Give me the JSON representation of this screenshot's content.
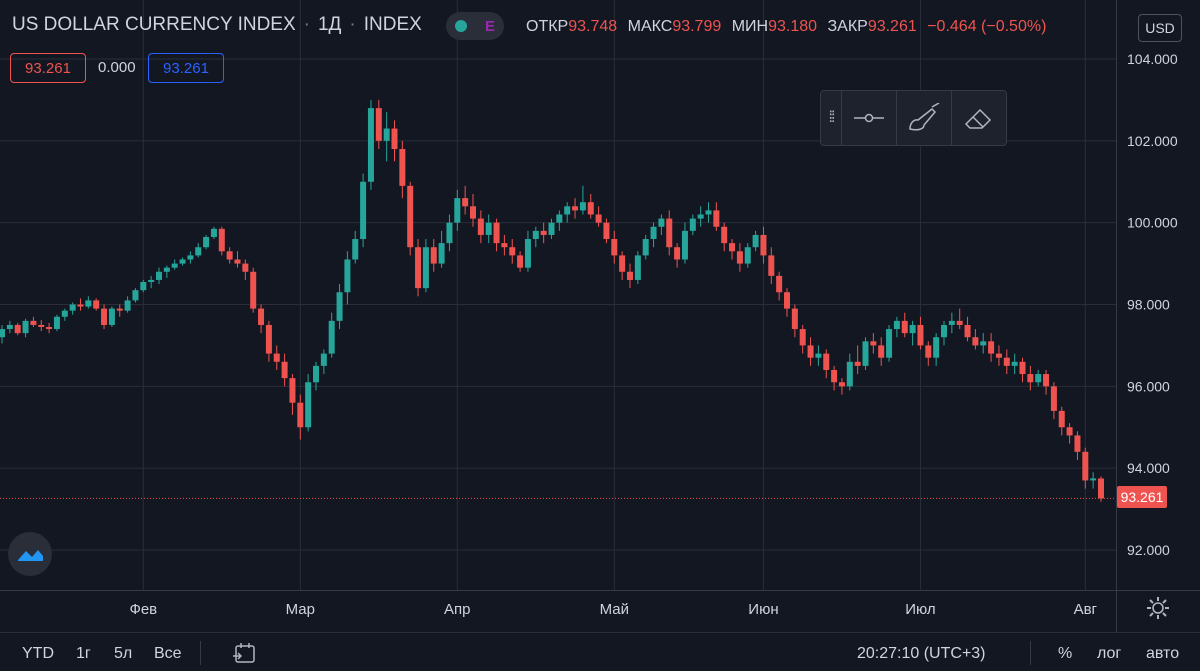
{
  "header": {
    "symbol": "US DOLLAR CURRENCY INDEX",
    "interval": "1Д",
    "exchange": "INDEX",
    "market_badge": "E",
    "ohlc": {
      "open_label": "ОТКР",
      "open": "93.748",
      "high_label": "МАКС",
      "high": "93.799",
      "low_label": "МИН",
      "low": "93.180",
      "close_label": "ЗАКР",
      "close": "93.261",
      "change": "−0.464 (−0.50%)"
    },
    "currency": "USD",
    "values": {
      "price": "93.261",
      "middle": "0.000",
      "price_blue": "93.261"
    }
  },
  "colors": {
    "up": "#26a69a",
    "down": "#ef5350",
    "background": "#131722",
    "grid": "#2a2e39"
  },
  "bottom_bar": {
    "ranges": [
      "YTD",
      "1г",
      "5л",
      "Все"
    ],
    "time": "20:27:10 (UTC+3)",
    "percent": "%",
    "log": "лог",
    "auto": "авто"
  },
  "chart_data": {
    "type": "candlestick",
    "title": "US DOLLAR CURRENCY INDEX",
    "xlabel": "",
    "ylabel": "",
    "ylim": [
      91.0,
      104.5
    ],
    "y_ticks": [
      "104.000",
      "102.000",
      "100.000",
      "98.000",
      "96.000",
      "94.000",
      "92.000"
    ],
    "x_ticks": [
      "Фев",
      "Мар",
      "Апр",
      "Май",
      "Июн",
      "Июл",
      "Авг"
    ],
    "x_tick_index": [
      18,
      38,
      58,
      78,
      97,
      117,
      138
    ],
    "last_price": 93.261,
    "last_price_label": "93.261",
    "candles": [
      [
        97.2,
        97.5,
        97.05,
        97.4
      ],
      [
        97.4,
        97.6,
        97.3,
        97.5
      ],
      [
        97.5,
        97.55,
        97.25,
        97.3
      ],
      [
        97.3,
        97.65,
        97.2,
        97.6
      ],
      [
        97.6,
        97.7,
        97.45,
        97.5
      ],
      [
        97.5,
        97.62,
        97.35,
        97.45
      ],
      [
        97.45,
        97.55,
        97.3,
        97.4
      ],
      [
        97.4,
        97.75,
        97.35,
        97.7
      ],
      [
        97.7,
        97.9,
        97.6,
        97.85
      ],
      [
        97.85,
        98.05,
        97.75,
        98.0
      ],
      [
        98.0,
        98.15,
        97.85,
        97.95
      ],
      [
        97.95,
        98.2,
        97.9,
        98.1
      ],
      [
        98.1,
        98.15,
        97.85,
        97.9
      ],
      [
        97.9,
        98.0,
        97.4,
        97.5
      ],
      [
        97.5,
        97.95,
        97.45,
        97.9
      ],
      [
        97.9,
        98.0,
        97.7,
        97.85
      ],
      [
        97.85,
        98.2,
        97.8,
        98.1
      ],
      [
        98.1,
        98.4,
        98.05,
        98.35
      ],
      [
        98.35,
        98.6,
        98.3,
        98.55
      ],
      [
        98.55,
        98.7,
        98.4,
        98.6
      ],
      [
        98.6,
        98.9,
        98.5,
        98.8
      ],
      [
        98.8,
        98.95,
        98.65,
        98.9
      ],
      [
        98.9,
        99.1,
        98.85,
        99.0
      ],
      [
        99.0,
        99.15,
        98.95,
        99.1
      ],
      [
        99.1,
        99.3,
        99.0,
        99.2
      ],
      [
        99.2,
        99.5,
        99.15,
        99.4
      ],
      [
        99.4,
        99.7,
        99.35,
        99.65
      ],
      [
        99.65,
        99.9,
        99.6,
        99.85
      ],
      [
        99.85,
        99.9,
        99.2,
        99.3
      ],
      [
        99.3,
        99.4,
        99.0,
        99.1
      ],
      [
        99.1,
        99.3,
        98.9,
        99.0
      ],
      [
        99.0,
        99.1,
        98.6,
        98.8
      ],
      [
        98.8,
        98.9,
        97.8,
        97.9
      ],
      [
        97.9,
        98.0,
        97.3,
        97.5
      ],
      [
        97.5,
        97.6,
        96.6,
        96.8
      ],
      [
        96.8,
        97.0,
        96.4,
        96.6
      ],
      [
        96.6,
        96.8,
        96.0,
        96.2
      ],
      [
        96.2,
        96.3,
        95.3,
        95.6
      ],
      [
        95.6,
        95.8,
        94.7,
        95.0
      ],
      [
        95.0,
        96.3,
        94.9,
        96.1
      ],
      [
        96.1,
        96.6,
        95.9,
        96.5
      ],
      [
        96.5,
        96.9,
        96.3,
        96.8
      ],
      [
        96.8,
        97.8,
        96.7,
        97.6
      ],
      [
        97.6,
        98.5,
        97.4,
        98.3
      ],
      [
        98.3,
        99.3,
        98.0,
        99.1
      ],
      [
        99.1,
        99.8,
        99.0,
        99.6
      ],
      [
        99.6,
        101.2,
        99.4,
        101.0
      ],
      [
        101.0,
        103.0,
        100.8,
        102.8
      ],
      [
        102.8,
        103.0,
        101.8,
        102.0
      ],
      [
        102.0,
        102.7,
        101.5,
        102.3
      ],
      [
        102.3,
        102.5,
        101.5,
        101.8
      ],
      [
        101.8,
        102.0,
        100.6,
        100.9
      ],
      [
        100.9,
        101.0,
        99.2,
        99.4
      ],
      [
        99.4,
        99.6,
        98.2,
        98.4
      ],
      [
        98.4,
        99.6,
        98.3,
        99.4
      ],
      [
        99.4,
        99.6,
        98.8,
        99.0
      ],
      [
        99.0,
        99.8,
        98.9,
        99.5
      ],
      [
        99.5,
        100.2,
        99.3,
        100.0
      ],
      [
        100.0,
        100.8,
        99.8,
        100.6
      ],
      [
        100.6,
        100.9,
        100.2,
        100.4
      ],
      [
        100.4,
        100.7,
        99.9,
        100.1
      ],
      [
        100.1,
        100.3,
        99.5,
        99.7
      ],
      [
        99.7,
        100.2,
        99.5,
        100.0
      ],
      [
        100.0,
        100.1,
        99.3,
        99.5
      ],
      [
        99.5,
        99.7,
        99.2,
        99.4
      ],
      [
        99.4,
        99.6,
        99.0,
        99.2
      ],
      [
        99.2,
        99.3,
        98.8,
        98.9
      ],
      [
        98.9,
        99.8,
        98.8,
        99.6
      ],
      [
        99.6,
        99.9,
        99.4,
        99.8
      ],
      [
        99.8,
        100.0,
        99.5,
        99.7
      ],
      [
        99.7,
        100.1,
        99.6,
        100.0
      ],
      [
        100.0,
        100.3,
        99.8,
        100.2
      ],
      [
        100.2,
        100.5,
        100.0,
        100.4
      ],
      [
        100.4,
        100.6,
        100.1,
        100.3
      ],
      [
        100.3,
        100.9,
        100.2,
        100.5
      ],
      [
        100.5,
        100.7,
        100.1,
        100.2
      ],
      [
        100.2,
        100.4,
        99.9,
        100.0
      ],
      [
        100.0,
        100.1,
        99.5,
        99.6
      ],
      [
        99.6,
        99.8,
        99.0,
        99.2
      ],
      [
        99.2,
        99.3,
        98.6,
        98.8
      ],
      [
        98.8,
        99.0,
        98.4,
        98.6
      ],
      [
        98.6,
        99.3,
        98.5,
        99.2
      ],
      [
        99.2,
        99.7,
        99.1,
        99.6
      ],
      [
        99.6,
        100.0,
        99.4,
        99.9
      ],
      [
        99.9,
        100.2,
        99.7,
        100.1
      ],
      [
        100.1,
        100.3,
        99.2,
        99.4
      ],
      [
        99.4,
        99.5,
        98.9,
        99.1
      ],
      [
        99.1,
        100.0,
        99.0,
        99.8
      ],
      [
        99.8,
        100.2,
        99.7,
        100.1
      ],
      [
        100.1,
        100.4,
        99.9,
        100.2
      ],
      [
        100.2,
        100.5,
        100.0,
        100.3
      ],
      [
        100.3,
        100.5,
        99.8,
        99.9
      ],
      [
        99.9,
        100.0,
        99.3,
        99.5
      ],
      [
        99.5,
        99.6,
        99.1,
        99.3
      ],
      [
        99.3,
        99.5,
        98.8,
        99.0
      ],
      [
        99.0,
        99.5,
        98.9,
        99.4
      ],
      [
        99.4,
        99.8,
        99.3,
        99.7
      ],
      [
        99.7,
        99.9,
        99.0,
        99.2
      ],
      [
        99.2,
        99.4,
        98.5,
        98.7
      ],
      [
        98.7,
        98.8,
        98.1,
        98.3
      ],
      [
        98.3,
        98.4,
        97.7,
        97.9
      ],
      [
        97.9,
        98.0,
        97.2,
        97.4
      ],
      [
        97.4,
        97.5,
        96.8,
        97.0
      ],
      [
        97.0,
        97.2,
        96.5,
        96.7
      ],
      [
        96.7,
        97.0,
        96.5,
        96.8
      ],
      [
        96.8,
        96.9,
        96.2,
        96.4
      ],
      [
        96.4,
        96.5,
        95.9,
        96.1
      ],
      [
        96.1,
        96.2,
        95.8,
        96.0
      ],
      [
        96.0,
        96.8,
        95.9,
        96.6
      ],
      [
        96.6,
        97.0,
        96.3,
        96.5
      ],
      [
        96.5,
        97.2,
        96.4,
        97.1
      ],
      [
        97.1,
        97.3,
        96.8,
        97.0
      ],
      [
        97.0,
        97.2,
        96.5,
        96.7
      ],
      [
        96.7,
        97.5,
        96.6,
        97.4
      ],
      [
        97.4,
        97.7,
        97.2,
        97.6
      ],
      [
        97.6,
        97.8,
        97.2,
        97.3
      ],
      [
        97.3,
        97.6,
        97.0,
        97.5
      ],
      [
        97.5,
        97.7,
        96.9,
        97.0
      ],
      [
        97.0,
        97.1,
        96.5,
        96.7
      ],
      [
        96.7,
        97.3,
        96.5,
        97.2
      ],
      [
        97.2,
        97.6,
        97.0,
        97.5
      ],
      [
        97.5,
        97.8,
        97.3,
        97.6
      ],
      [
        97.6,
        97.9,
        97.4,
        97.5
      ],
      [
        97.5,
        97.7,
        97.1,
        97.2
      ],
      [
        97.2,
        97.4,
        96.9,
        97.0
      ],
      [
        97.0,
        97.3,
        96.8,
        97.1
      ],
      [
        97.1,
        97.3,
        96.6,
        96.8
      ],
      [
        96.8,
        97.0,
        96.5,
        96.7
      ],
      [
        96.7,
        96.9,
        96.3,
        96.5
      ],
      [
        96.5,
        96.8,
        96.3,
        96.6
      ],
      [
        96.6,
        96.7,
        96.1,
        96.3
      ],
      [
        96.3,
        96.5,
        95.9,
        96.1
      ],
      [
        96.1,
        96.4,
        96.0,
        96.3
      ],
      [
        96.3,
        96.4,
        95.8,
        96.0
      ],
      [
        96.0,
        96.1,
        95.2,
        95.4
      ],
      [
        95.4,
        95.5,
        94.8,
        95.0
      ],
      [
        95.0,
        95.1,
        94.6,
        94.8
      ],
      [
        94.8,
        94.9,
        94.2,
        94.4
      ],
      [
        94.4,
        94.5,
        93.5,
        93.7
      ],
      [
        93.7,
        93.9,
        93.5,
        93.75
      ],
      [
        93.748,
        93.799,
        93.18,
        93.261
      ]
    ]
  }
}
